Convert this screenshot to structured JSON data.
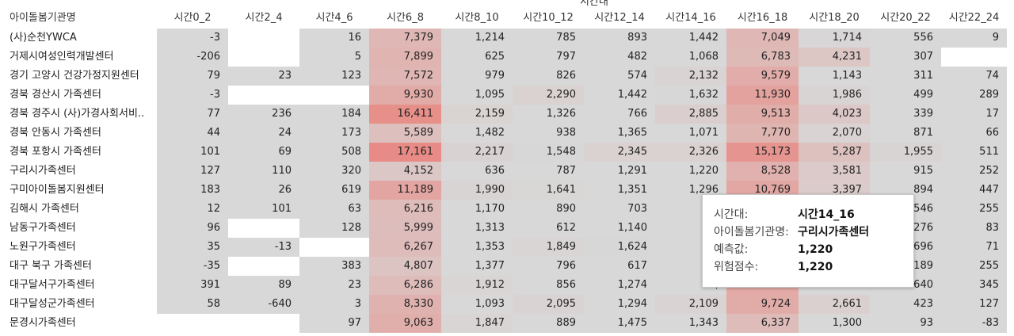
{
  "group_header": "시간대",
  "columns": [
    "아이돌봄기관명",
    "시간0_2",
    "시간2_4",
    "시간4_6",
    "시간6_8",
    "시간8_10",
    "시간10_12",
    "시간12_14",
    "시간14_16",
    "시간16_18",
    "시간18_20",
    "시간20_22",
    "시간22_24"
  ],
  "rows": [
    {
      "name": "(사)순천YWCA",
      "values": [
        "-3",
        "",
        "16",
        "7,379",
        "1,214",
        "785",
        "893",
        "1,442",
        "7,049",
        "1,714",
        "556",
        "9"
      ]
    },
    {
      "name": "거제시여성인력개발센터",
      "values": [
        "-206",
        "",
        "5",
        "7,899",
        "625",
        "797",
        "482",
        "1,068",
        "6,783",
        "4,231",
        "307",
        ""
      ]
    },
    {
      "name": "경기 고양시 건강가정지원센터",
      "values": [
        "79",
        "23",
        "123",
        "7,572",
        "979",
        "826",
        "574",
        "2,132",
        "9,579",
        "1,143",
        "311",
        "74"
      ]
    },
    {
      "name": "경북 경산시 가족센터",
      "values": [
        "-3",
        "",
        "",
        "9,930",
        "1,095",
        "2,290",
        "1,442",
        "1,632",
        "11,930",
        "1,986",
        "499",
        "289"
      ]
    },
    {
      "name": "경북 경주시 (사)가경사회서비..",
      "values": [
        "77",
        "236",
        "184",
        "16,411",
        "2,159",
        "1,326",
        "766",
        "2,885",
        "9,513",
        "4,023",
        "339",
        "17"
      ]
    },
    {
      "name": "경북 안동시 가족센터",
      "values": [
        "44",
        "24",
        "173",
        "5,589",
        "1,482",
        "938",
        "1,365",
        "1,071",
        "7,770",
        "2,070",
        "871",
        "66"
      ]
    },
    {
      "name": "경북 포항시 가족센터",
      "values": [
        "101",
        "69",
        "508",
        "17,161",
        "2,217",
        "1,548",
        "2,345",
        "2,326",
        "15,173",
        "5,287",
        "1,955",
        "511"
      ]
    },
    {
      "name": "구리시가족센터",
      "values": [
        "127",
        "110",
        "320",
        "4,152",
        "636",
        "787",
        "1,291",
        "1,220",
        "8,528",
        "3,581",
        "915",
        "252"
      ]
    },
    {
      "name": "구미아이돌봄지원센터",
      "values": [
        "183",
        "26",
        "619",
        "11,189",
        "1,990",
        "1,641",
        "1,351",
        "1,296",
        "10,769",
        "3,397",
        "894",
        "447"
      ]
    },
    {
      "name": "김해시 가족센터",
      "values": [
        "12",
        "101",
        "63",
        "6,216",
        "1,170",
        "890",
        "703",
        "1,",
        "",
        "",
        "546",
        "255"
      ]
    },
    {
      "name": "남동구가족센터",
      "values": [
        "96",
        "",
        "128",
        "5,999",
        "1,313",
        "612",
        "1,140",
        "2,",
        "",
        "",
        "276",
        "83"
      ]
    },
    {
      "name": "노원구가족센터",
      "values": [
        "35",
        "-13",
        "",
        "6,267",
        "1,353",
        "1,849",
        "1,624",
        "1,",
        "",
        "",
        "696",
        "71"
      ]
    },
    {
      "name": "대구 북구 가족센터",
      "values": [
        "-35",
        "",
        "383",
        "4,807",
        "1,377",
        "796",
        "617",
        "2,",
        "",
        "",
        "189",
        "255"
      ]
    },
    {
      "name": "대구달서구가족센터",
      "values": [
        "391",
        "89",
        "23",
        "6,286",
        "1,912",
        "856",
        "1,274",
        "2,",
        "",
        "",
        "640",
        "345"
      ]
    },
    {
      "name": "대구달성군가족센터",
      "values": [
        "58",
        "-640",
        "3",
        "8,330",
        "1,093",
        "2,095",
        "1,294",
        "2,109",
        "9,724",
        "2,661",
        "423",
        "127"
      ]
    },
    {
      "name": "문경시가족센터",
      "values": [
        "",
        "",
        "97",
        "9,063",
        "1,847",
        "889",
        "1,475",
        "1,343",
        "6,337",
        "1,300",
        "93",
        "-83"
      ]
    }
  ],
  "selected_cell": {
    "row": 7,
    "col": 8
  },
  "tooltip": {
    "items": [
      {
        "label": "시간대:",
        "value": "시간14_16"
      },
      {
        "label": "아이돌봄기관명:",
        "value": "구리시가족센터"
      },
      {
        "label": "예측값:",
        "value": "1,220"
      },
      {
        "label": "위험점수:",
        "value": "1,220"
      }
    ]
  },
  "colors": {
    "base": "#d8d8d8",
    "hot": "#e88a84",
    "blank": "#ffffff"
  }
}
